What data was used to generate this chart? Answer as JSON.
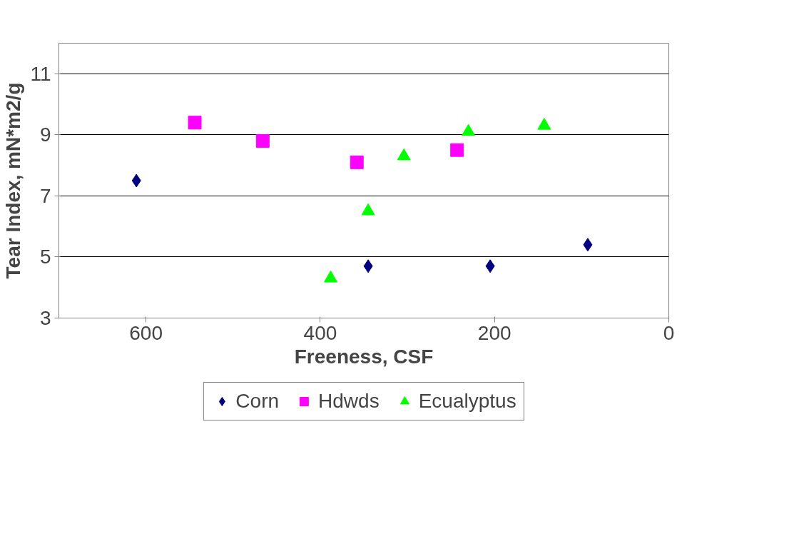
{
  "chart_data": {
    "type": "scatter",
    "xlabel": "Freeness, CSF",
    "ylabel": "Tear Index, mN*m2/g",
    "xlim": [
      700,
      0
    ],
    "xticks": [
      600,
      400,
      200,
      0
    ],
    "ylim": [
      3,
      12
    ],
    "yticks": [
      3,
      5,
      7,
      9,
      11
    ],
    "grid": "y",
    "legend": "bottom",
    "series": [
      {
        "name": "Corn",
        "color": "#000080",
        "marker": "diamond",
        "x": [
          611,
          345,
          205,
          93
        ],
        "values": [
          7.5,
          4.7,
          4.7,
          5.4
        ]
      },
      {
        "name": "Hdwds",
        "color": "#ff00ff",
        "marker": "square",
        "x": [
          544,
          466,
          358,
          243
        ],
        "values": [
          9.4,
          8.8,
          8.1,
          8.5
        ]
      },
      {
        "name": "Ecualyptus",
        "color": "#00ff00",
        "marker": "triangle",
        "x": [
          388,
          345,
          304,
          230,
          143
        ],
        "values": [
          4.3,
          6.5,
          8.3,
          9.1,
          9.3
        ]
      }
    ]
  }
}
